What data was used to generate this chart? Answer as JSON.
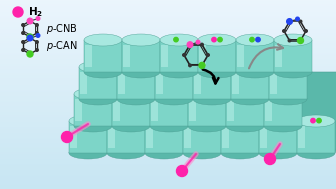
{
  "bg_top": "#b8d8ed",
  "bg_bottom": "#daeef8",
  "teal_face": "#7dd5c8",
  "teal_top": "#a8e8e0",
  "teal_dark": "#5ab8aa",
  "teal_edge": "#4a9e92",
  "teal_side": "#6bc4b6",
  "h2_color": "#ff22aa",
  "green_color": "#44cc22",
  "blue_color": "#2244ee",
  "red_color": "#dd2222",
  "pink_color": "#ff44bb",
  "gray_arrow": "#999999",
  "black": "#111111",
  "legend_h2": "H₂",
  "legend_pcnb": "p-CNB",
  "legend_pcan": "p-CAN",
  "figsize": [
    3.36,
    1.89
  ],
  "dpi": 100
}
